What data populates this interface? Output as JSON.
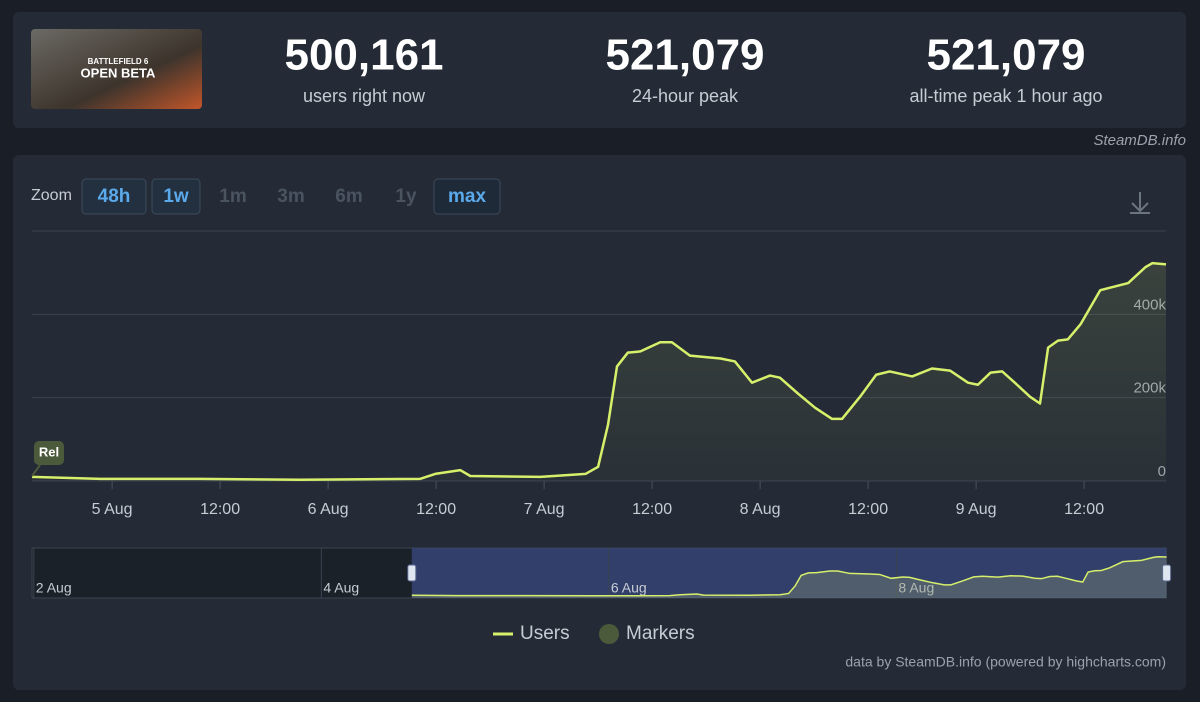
{
  "header": {
    "image_title": "BATTLEFIELD 6",
    "image_text": "OPEN BETA",
    "stats": [
      {
        "value": "500,161",
        "label": "users right now"
      },
      {
        "value": "521,079",
        "label": "24-hour peak"
      },
      {
        "value": "521,079",
        "label": "all-time peak 1 hour ago"
      }
    ],
    "source": "SteamDB.info"
  },
  "toolbar": {
    "label": "Zoom",
    "buttons": [
      {
        "label": "48h",
        "state": "enabled"
      },
      {
        "label": "1w",
        "state": "enabled"
      },
      {
        "label": "1m",
        "state": "disabled"
      },
      {
        "label": "3m",
        "state": "disabled"
      },
      {
        "label": "6m",
        "state": "disabled"
      },
      {
        "label": "1y",
        "state": "disabled"
      },
      {
        "label": "max",
        "state": "selected"
      }
    ]
  },
  "chart_data": {
    "type": "line",
    "x": [
      -8.9,
      -1.3,
      9.8,
      20.9,
      34.2,
      35.9,
      38.7,
      39.8,
      47.6,
      52.6,
      54,
      55.1,
      56.1,
      57.3,
      58.7,
      60.9,
      62.2,
      64.2,
      67.6,
      69.2,
      71.1,
      73.1,
      74.2,
      76.2,
      78.1,
      80,
      81.1,
      83.1,
      84.9,
      86.4,
      88.9,
      91.1,
      93.1,
      95.1,
      96.2,
      97.6,
      98.9,
      100.3,
      102,
      103.1,
      104,
      105.1,
      106.2,
      107.6,
      109.8,
      112.9,
      114.8,
      115.6,
      117.1
    ],
    "series": [
      {
        "name": "Users",
        "color": "#d7f06b",
        "values": [
          10000,
          5000,
          5000,
          3000,
          5000,
          17000,
          26000,
          12000,
          10000,
          17000,
          34000,
          135000,
          275000,
          308000,
          311000,
          333000,
          333000,
          301000,
          294000,
          287000,
          236000,
          253000,
          248000,
          210000,
          176000,
          149000,
          149000,
          202000,
          255000,
          263000,
          251000,
          270000,
          265000,
          236000,
          231000,
          260000,
          263000,
          236000,
          202000,
          186000,
          320000,
          337000,
          340000,
          376000,
          458000,
          475000,
          513000,
          523000,
          520000
        ]
      }
    ],
    "markers": {
      "name": "Markers",
      "color": "#4b5a3a",
      "points": [
        {
          "x": -8.9,
          "label": "Rel"
        }
      ]
    },
    "xlim": [
      -8.9,
      117.1
    ],
    "xticks": [
      {
        "value": 0,
        "label": "5 Aug"
      },
      {
        "value": 12,
        "label": "12:00"
      },
      {
        "value": 24,
        "label": "6 Aug"
      },
      {
        "value": 36,
        "label": "12:00"
      },
      {
        "value": 48,
        "label": "7 Aug"
      },
      {
        "value": 60,
        "label": "12:00"
      },
      {
        "value": 72,
        "label": "8 Aug"
      },
      {
        "value": 84,
        "label": "12:00"
      },
      {
        "value": 96,
        "label": "9 Aug"
      },
      {
        "value": 108,
        "label": "12:00"
      }
    ],
    "ylim": [
      0,
      600000
    ],
    "yticks": [
      0,
      {
        "value": 200000,
        "label": "200k"
      },
      {
        "value": 400000,
        "label": "400k"
      }
    ],
    "grid": true,
    "navigator": {
      "xlim": [
        -72.3,
        117
      ],
      "xticks": [
        {
          "value": -72,
          "label": "2 Aug"
        },
        {
          "value": -24,
          "label": "4 Aug"
        },
        {
          "value": 24,
          "label": "6 Aug"
        },
        {
          "value": 72,
          "label": "8 Aug"
        }
      ]
    },
    "credit": "data by SteamDB.info (powered by highcharts.com)"
  }
}
